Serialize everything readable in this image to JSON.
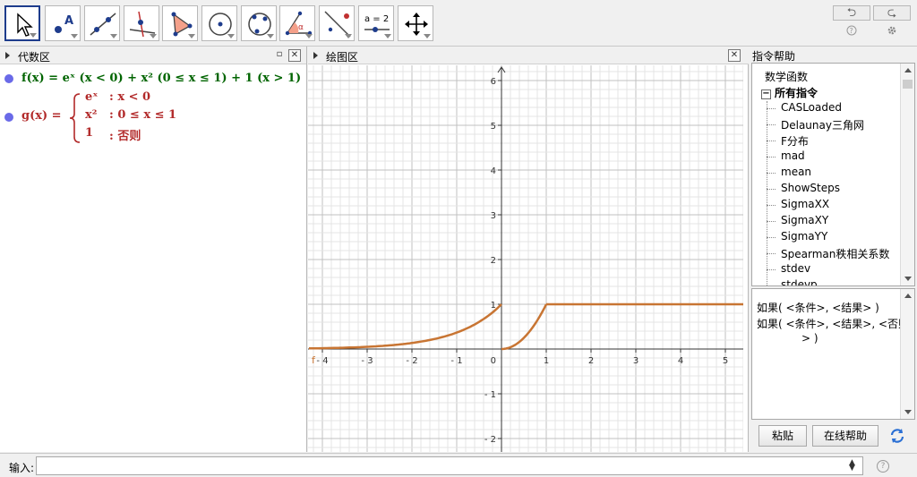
{
  "toolbar": {
    "tools": [
      {
        "name": "move-tool",
        "icon": "arrow-cursor-icon"
      },
      {
        "name": "point-tool",
        "icon": "point-icon",
        "label": "A"
      },
      {
        "name": "line-tool",
        "icon": "line-through-points-icon"
      },
      {
        "name": "perpendicular-tool",
        "icon": "perpendicular-line-icon"
      },
      {
        "name": "polygon-tool",
        "icon": "polygon-icon"
      },
      {
        "name": "circle-tool",
        "icon": "circle-center-icon"
      },
      {
        "name": "conic-tool",
        "icon": "circle-three-points-icon"
      },
      {
        "name": "angle-tool",
        "icon": "angle-icon",
        "label": "α"
      },
      {
        "name": "reflect-tool",
        "icon": "reflect-line-icon"
      },
      {
        "name": "slider-tool",
        "icon": "slider-icon",
        "label": "a = 2"
      },
      {
        "name": "move-view-tool",
        "icon": "move-arrows-icon"
      }
    ],
    "undo_label": "⮌",
    "redo_label": "⮎"
  },
  "algebra": {
    "title": "代数区",
    "f_text": "f(x) = eˣ (x < 0) + x² (0 ≤ x ≤ 1) + 1 (x > 1)",
    "g_label": "g(x) =",
    "g_cases": [
      {
        "expr": "eˣ",
        "cond": ": x < 0"
      },
      {
        "expr": "x²",
        "cond": ": 0 ≤ x ≤ 1"
      },
      {
        "expr": "1",
        "cond": ": 否则"
      }
    ]
  },
  "graphics": {
    "title": "绘图区",
    "origin_label": "0",
    "curve_label": "f"
  },
  "chart_data": {
    "type": "line",
    "title": "",
    "xlabel": "",
    "ylabel": "",
    "xlim": [
      -4.3,
      5.4
    ],
    "ylim": [
      -2.3,
      6.3
    ],
    "x_ticks": [
      -4,
      -3,
      -2,
      -1,
      1,
      2,
      3,
      4,
      5
    ],
    "y_ticks": [
      -2,
      -1,
      1,
      2,
      3,
      4,
      5,
      6
    ],
    "grid": true,
    "series": [
      {
        "color": "#c87533",
        "pieces": [
          "e^x for x<0",
          "x^2 for 0<=x<=1",
          "1 for x>1"
        ]
      }
    ]
  },
  "cmdhelp": {
    "title": "指令帮助",
    "tree": [
      {
        "label": "数学函数",
        "level": 0,
        "bold": false
      },
      {
        "label": "所有指令",
        "level": 0,
        "bold": true,
        "expander": "−"
      },
      {
        "label": "CASLoaded",
        "level": 1
      },
      {
        "label": "Delaunay三角网",
        "level": 1
      },
      {
        "label": "F分布",
        "level": 1
      },
      {
        "label": "mad",
        "level": 1
      },
      {
        "label": "mean",
        "level": 1
      },
      {
        "label": "ShowSteps",
        "level": 1
      },
      {
        "label": "SigmaXX",
        "level": 1
      },
      {
        "label": "SigmaXY",
        "level": 1
      },
      {
        "label": "SigmaYY",
        "level": 1
      },
      {
        "label": "Spearman秩相关系数",
        "level": 1
      },
      {
        "label": "stdev",
        "level": 1
      },
      {
        "label": "stdevp",
        "level": 1
      }
    ],
    "syntax_lines": [
      "如果( <条件>, <结果> )",
      "如果( <条件>, <结果>, <否则",
      "> )"
    ],
    "paste_label": "粘贴",
    "online_help_label": "在线帮助"
  },
  "input": {
    "label": "输入:",
    "value": ""
  }
}
